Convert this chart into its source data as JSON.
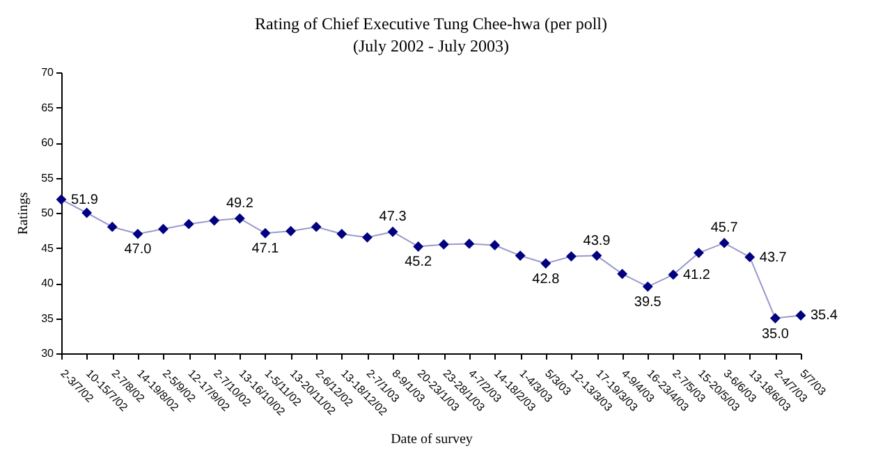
{
  "chart_data": {
    "type": "line",
    "title": "Rating of Chief Executive Tung Chee-hwa  (per poll)",
    "subtitle": "(July 2002 - July 2003)",
    "xlabel": "Date of survey",
    "ylabel": "Ratings",
    "categories": [
      "2-3/7/02",
      "10-15/7/02",
      "2-7/8/02",
      "14-19/8/02",
      "2-5/9/02",
      "12-17/9/02",
      "2-7/10/02",
      "13-16/10/02",
      "1-5/11/02",
      "13-20/11/02",
      "2-6/12/02",
      "13-18/12/02",
      "2-7/1/03",
      "8-9/1/03",
      "20-23/1/03",
      "23-28/1/03",
      "4-7/2/03",
      "14-18/2/03",
      "1-4/3/03",
      "5/3/03",
      "12-13/3/03",
      "17-19/3/03",
      "4-9/4/03",
      "16-23/4/03",
      "2-7/5/03",
      "15-20/5/03",
      "3-6/6/03",
      "13-18/6/03",
      "2-4/7/03",
      "5/7/03"
    ],
    "color": "#000080",
    "values": [
      51.9,
      50.0,
      48.0,
      47.0,
      47.7,
      48.4,
      48.9,
      49.2,
      47.1,
      47.4,
      48.0,
      47.0,
      46.5,
      47.3,
      45.2,
      45.5,
      45.6,
      45.4,
      43.9,
      42.8,
      43.8,
      43.9,
      41.3,
      39.5,
      41.2,
      44.3,
      45.7,
      43.7,
      35.0,
      35.4
    ],
    "value_labels": [
      "51.9",
      null,
      null,
      "47.0",
      null,
      null,
      null,
      "49.2",
      "47.1",
      null,
      null,
      null,
      null,
      "47.3",
      "45.2",
      null,
      null,
      null,
      null,
      "42.8",
      null,
      "43.9",
      null,
      "39.5",
      "41.2",
      null,
      "45.7",
      "43.7",
      "35.0",
      "35.4"
    ],
    "ylim": [
      30,
      70
    ],
    "yticks": [
      30,
      35,
      40,
      45,
      50,
      55,
      60,
      65,
      70
    ],
    "grid": false,
    "marker": "diamond",
    "line_style": "solid"
  }
}
